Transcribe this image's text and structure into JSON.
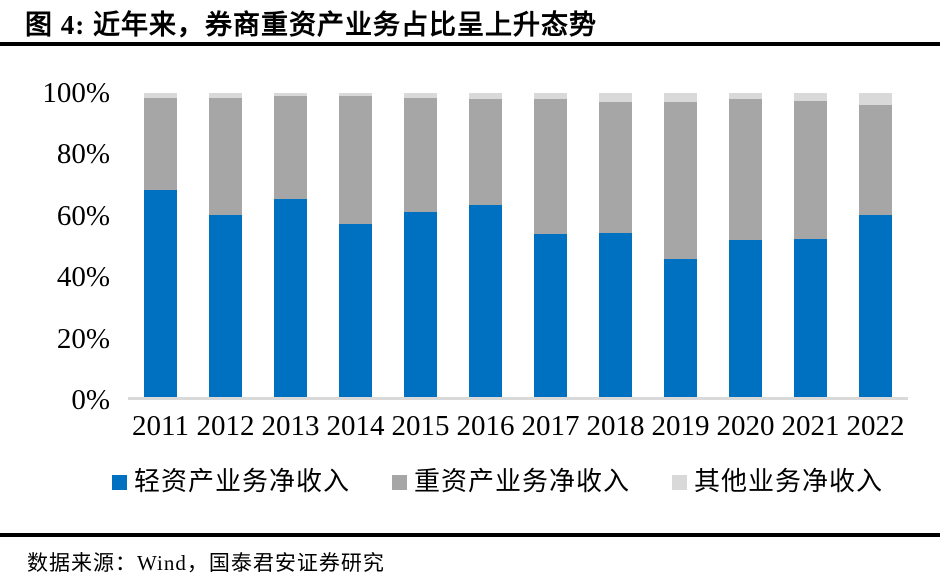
{
  "figure": {
    "title": "图 4: 近年来，券商重资产业务占比呈上升态势",
    "source": "数据来源：Wind，国泰君安证券研究"
  },
  "chart_data": {
    "type": "bar",
    "variant": "stacked-100-percent",
    "title": "",
    "xlabel": "",
    "ylabel": "",
    "ylim": [
      0,
      100
    ],
    "grid": false,
    "legend_position": "bottom",
    "axis_line_color": "#d9d9d9",
    "categories": [
      "2011",
      "2012",
      "2013",
      "2014",
      "2015",
      "2016",
      "2017",
      "2018",
      "2019",
      "2020",
      "2021",
      "2022"
    ],
    "series": [
      {
        "name": "轻资产业务净收入",
        "color": "#0070c0",
        "values": [
          68,
          60,
          65,
          57,
          61,
          63,
          53.5,
          54,
          45.5,
          51.5,
          52,
          60
        ]
      },
      {
        "name": "重资产业务净收入",
        "color": "#a6a6a6",
        "values": [
          30.5,
          38.5,
          34,
          42,
          37.5,
          35,
          44.5,
          43,
          51.5,
          46.5,
          45.5,
          36
        ]
      },
      {
        "name": "其他业务净收入",
        "color": "#d9d9d9",
        "values": [
          1.5,
          1.5,
          1,
          1,
          1.5,
          2,
          2,
          3,
          3,
          2,
          2.5,
          4
        ]
      }
    ],
    "y_ticks": [
      {
        "label": "100%",
        "value": 100
      },
      {
        "label": "80%",
        "value": 80
      },
      {
        "label": "60%",
        "value": 60
      },
      {
        "label": "40%",
        "value": 40
      },
      {
        "label": "20%",
        "value": 20
      },
      {
        "label": "0%",
        "value": 0
      }
    ]
  }
}
